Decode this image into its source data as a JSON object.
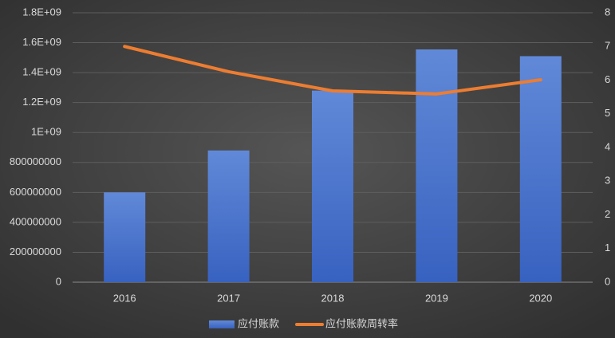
{
  "chart_data": {
    "type": "bar-line",
    "categories": [
      "2016",
      "2017",
      "2018",
      "2019",
      "2020"
    ],
    "series": [
      {
        "name": "应付账款",
        "type": "bar",
        "color": "#4472c4",
        "values": [
          600000000,
          880000000,
          1280000000,
          1555000000,
          1510000000
        ]
      },
      {
        "name": "应付账款周转率",
        "type": "line",
        "axis": "y2",
        "color": "#ed7d31",
        "values": [
          7.0,
          6.25,
          5.68,
          5.59,
          6.01
        ]
      }
    ],
    "ylim": [
      0,
      1800000000
    ],
    "yticks": [
      0,
      200000000,
      400000000,
      600000000,
      800000000,
      {
        "value": 1000000000,
        "label": "1E+09"
      },
      {
        "value": 1200000000,
        "label": "1.2E+09"
      },
      {
        "value": 1400000000,
        "label": "1.4E+09"
      },
      {
        "value": 1600000000,
        "label": "1.6E+09"
      },
      {
        "value": 1800000000,
        "label": "1.8E+09"
      }
    ],
    "y2lim": [
      0,
      8
    ],
    "y2ticks": [
      0,
      1,
      2,
      3,
      4,
      5,
      6,
      7,
      8
    ],
    "grid": true,
    "legend": "bottom"
  }
}
